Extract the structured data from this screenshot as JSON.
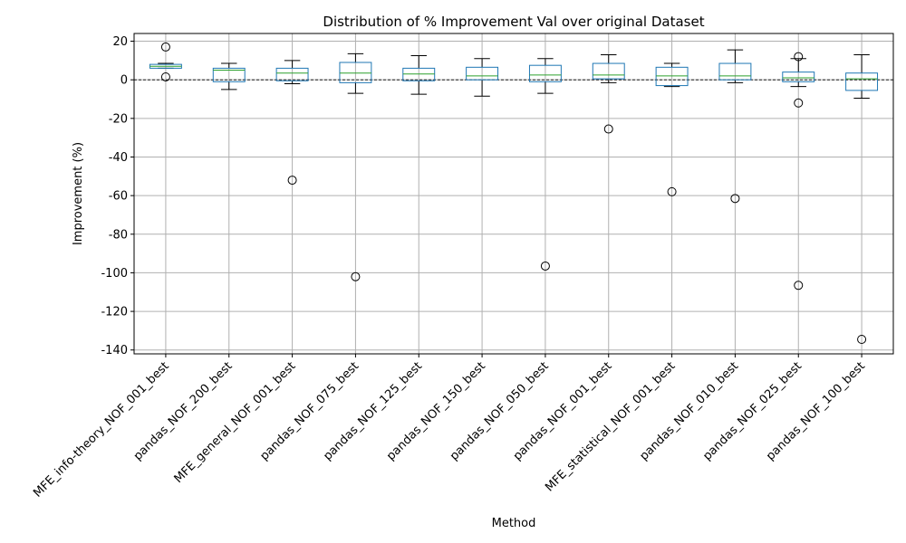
{
  "chart_data": {
    "type": "box",
    "title": "Distribution of % Improvement Val over original Dataset",
    "xlabel": "Method",
    "ylabel": "Improvement (%)",
    "ylim": [
      -142,
      24
    ],
    "yticks": [
      20,
      0,
      -20,
      -40,
      -60,
      -80,
      -100,
      -120,
      -140
    ],
    "grid": true,
    "reference_line": 0,
    "colors": {
      "box": "#1f77b4",
      "median": "#2ca02c",
      "whisker": "#000000",
      "grid": "#b0b0b0",
      "flier": "#000000"
    },
    "categories": [
      "MFE_info-theory_NOF_001_best",
      "pandas_NOF_200_best",
      "MFE_general_NOF_001_best",
      "pandas_NOF_075_best",
      "pandas_NOF_125_best",
      "pandas_NOF_150_best",
      "pandas_NOF_050_best",
      "pandas_NOF_001_best",
      "MFE_statistical_NOF_001_best",
      "pandas_NOF_010_best",
      "pandas_NOF_025_best",
      "pandas_NOF_100_best"
    ],
    "boxes": [
      {
        "whisker_low": 6,
        "q1": 6,
        "median": 7,
        "q3": 8,
        "whisker_high": 8.5,
        "fliers": [
          17,
          1.5
        ]
      },
      {
        "whisker_low": -5,
        "q1": -1,
        "median": 5,
        "q3": 6,
        "whisker_high": 8.5,
        "fliers": []
      },
      {
        "whisker_low": -2,
        "q1": -0.5,
        "median": 3.5,
        "q3": 6,
        "whisker_high": 10,
        "fliers": [
          -52
        ]
      },
      {
        "whisker_low": -7,
        "q1": -1.5,
        "median": 3.5,
        "q3": 9,
        "whisker_high": 13.5,
        "fliers": [
          -102
        ]
      },
      {
        "whisker_low": -7.5,
        "q1": -0.5,
        "median": 3,
        "q3": 6,
        "whisker_high": 12.5,
        "fliers": []
      },
      {
        "whisker_low": -8.5,
        "q1": 0,
        "median": 2,
        "q3": 6.5,
        "whisker_high": 11,
        "fliers": []
      },
      {
        "whisker_low": -7,
        "q1": -1,
        "median": 2.5,
        "q3": 7.5,
        "whisker_high": 11,
        "fliers": [
          -96.5
        ]
      },
      {
        "whisker_low": -1.5,
        "q1": 0.5,
        "median": 2.5,
        "q3": 8.5,
        "whisker_high": 13,
        "fliers": [
          -25.5
        ]
      },
      {
        "whisker_low": -3.5,
        "q1": -3,
        "median": 2,
        "q3": 6.5,
        "whisker_high": 8.5,
        "fliers": [
          -58
        ]
      },
      {
        "whisker_low": -1.5,
        "q1": 0,
        "median": 2,
        "q3": 8.5,
        "whisker_high": 15.5,
        "fliers": [
          -61.5
        ]
      },
      {
        "whisker_low": -3.5,
        "q1": -1,
        "median": 1,
        "q3": 4,
        "whisker_high": 11,
        "fliers": [
          12,
          -12,
          -106.5
        ]
      },
      {
        "whisker_low": -9.5,
        "q1": -5.5,
        "median": 0.5,
        "q3": 3.5,
        "whisker_high": 13,
        "fliers": [
          -134.5
        ]
      }
    ]
  }
}
